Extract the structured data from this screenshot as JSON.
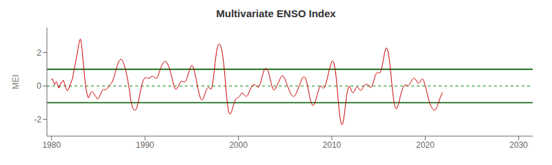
{
  "chart_data": {
    "type": "line",
    "title": "Multivariate ENSO Index",
    "ylabel": "MEI",
    "xlim": [
      1979.5,
      2031.5
    ],
    "xticks": [
      1980,
      1990,
      2000,
      2010,
      2020,
      2030
    ],
    "ylim": [
      -3.0,
      3.5
    ],
    "yticks": [
      -2,
      0,
      2
    ],
    "color": "#cc0000",
    "reference_lines": [
      {
        "value": 1.0,
        "color": "#1a6b1a",
        "line_style": "solid"
      },
      {
        "value": -1.0,
        "color": "#1a6b1a",
        "line_style": "solid"
      },
      {
        "value": 0,
        "color": "#008800",
        "line_style": "dashed"
      }
    ],
    "x": [
      1980,
      1980.0833,
      1980.1667,
      1980.25,
      1980.3333,
      1980.4167,
      1980.5,
      1980.5833,
      1980.6667,
      1980.75,
      1980.8333,
      1980.9167,
      1981,
      1981.0833,
      1981.1667,
      1981.25,
      1981.3333,
      1981.4167,
      1981.5,
      1981.5833,
      1981.6667,
      1981.75,
      1981.8333,
      1981.9167,
      1982,
      1982.0833,
      1982.1667,
      1982.25,
      1982.3333,
      1982.4167,
      1982.5,
      1982.5833,
      1982.6667,
      1982.75,
      1982.8333,
      1982.9167,
      1983,
      1983.0833,
      1983.1667,
      1983.25,
      1983.3333,
      1983.4167,
      1983.5,
      1983.5833,
      1983.6667,
      1983.75,
      1983.8333,
      1983.9167,
      1984,
      1984.0833,
      1984.1667,
      1984.25,
      1984.3333,
      1984.4167,
      1984.5,
      1984.5833,
      1984.6667,
      1984.75,
      1984.8333,
      1984.9167,
      1985,
      1985.0833,
      1985.1667,
      1985.25,
      1985.3333,
      1985.4167,
      1985.5,
      1985.5833,
      1985.6667,
      1985.75,
      1985.8333,
      1985.9167,
      1986,
      1986.0833,
      1986.1667,
      1986.25,
      1986.3333,
      1986.4167,
      1986.5,
      1986.5833,
      1986.6667,
      1986.75,
      1986.8333,
      1986.9167,
      1987,
      1987.0833,
      1987.1667,
      1987.25,
      1987.3333,
      1987.4167,
      1987.5,
      1987.5833,
      1987.6667,
      1987.75,
      1987.8333,
      1987.9167,
      1988,
      1988.0833,
      1988.1667,
      1988.25,
      1988.3333,
      1988.4167,
      1988.5,
      1988.5833,
      1988.6667,
      1988.75,
      1988.8333,
      1988.9167,
      1989,
      1989.0833,
      1989.1667,
      1989.25,
      1989.3333,
      1989.4167,
      1989.5,
      1989.5833,
      1989.6667,
      1989.75,
      1989.8333,
      1989.9167,
      1990,
      1990.0833,
      1990.1667,
      1990.25,
      1990.3333,
      1990.4167,
      1990.5,
      1990.5833,
      1990.6667,
      1990.75,
      1990.8333,
      1990.9167,
      1991,
      1991.0833,
      1991.1667,
      1991.25,
      1991.3333,
      1991.4167,
      1991.5,
      1991.5833,
      1991.6667,
      1991.75,
      1991.8333,
      1991.9167,
      1992,
      1992.0833,
      1992.1667,
      1992.25,
      1992.3333,
      1992.4167,
      1992.5,
      1992.5833,
      1992.6667,
      1992.75,
      1992.8333,
      1992.9167,
      1993,
      1993.0833,
      1993.1667,
      1993.25,
      1993.3333,
      1993.4167,
      1993.5,
      1993.5833,
      1993.6667,
      1993.75,
      1993.8333,
      1993.9167,
      1994,
      1994.0833,
      1994.1667,
      1994.25,
      1994.3333,
      1994.4167,
      1994.5,
      1994.5833,
      1994.6667,
      1994.75,
      1994.8333,
      1994.9167,
      1995,
      1995.0833,
      1995.1667,
      1995.25,
      1995.3333,
      1995.4167,
      1995.5,
      1995.5833,
      1995.6667,
      1995.75,
      1995.8333,
      1995.9167,
      1996,
      1996.0833,
      1996.1667,
      1996.25,
      1996.3333,
      1996.4167,
      1996.5,
      1996.5833,
      1996.6667,
      1996.75,
      1996.8333,
      1996.9167,
      1997,
      1997.0833,
      1997.1667,
      1997.25,
      1997.3333,
      1997.4167,
      1997.5,
      1997.5833,
      1997.6667,
      1997.75,
      1997.8333,
      1997.9167,
      1998,
      1998.0833,
      1998.1667,
      1998.25,
      1998.3333,
      1998.4167,
      1998.5,
      1998.5833,
      1998.6667,
      1998.75,
      1998.8333,
      1998.9167,
      1999,
      1999.0833,
      1999.1667,
      1999.25,
      1999.3333,
      1999.4167,
      1999.5,
      1999.5833,
      1999.6667,
      1999.75,
      1999.8333,
      1999.9167,
      2000,
      2000.0833,
      2000.1667,
      2000.25,
      2000.3333,
      2000.4167,
      2000.5,
      2000.5833,
      2000.6667,
      2000.75,
      2000.8333,
      2000.9167,
      2001,
      2001.0833,
      2001.1667,
      2001.25,
      2001.3333,
      2001.4167,
      2001.5,
      2001.5833,
      2001.6667,
      2001.75,
      2001.8333,
      2001.9167,
      2002,
      2002.0833,
      2002.1667,
      2002.25,
      2002.3333,
      2002.4167,
      2002.5,
      2002.5833,
      2002.6667,
      2002.75,
      2002.8333,
      2002.9167,
      2003,
      2003.0833,
      2003.1667,
      2003.25,
      2003.3333,
      2003.4167,
      2003.5,
      2003.5833,
      2003.6667,
      2003.75,
      2003.8333,
      2003.9167,
      2004,
      2004.0833,
      2004.1667,
      2004.25,
      2004.3333,
      2004.4167,
      2004.5,
      2004.5833,
      2004.6667,
      2004.75,
      2004.8333,
      2004.9167,
      2005,
      2005.0833,
      2005.1667,
      2005.25,
      2005.3333,
      2005.4167,
      2005.5,
      2005.5833,
      2005.6667,
      2005.75,
      2005.8333,
      2005.9167,
      2006,
      2006.0833,
      2006.1667,
      2006.25,
      2006.3333,
      2006.4167,
      2006.5,
      2006.5833,
      2006.6667,
      2006.75,
      2006.8333,
      2006.9167,
      2007,
      2007.0833,
      2007.1667,
      2007.25,
      2007.3333,
      2007.4167,
      2007.5,
      2007.5833,
      2007.6667,
      2007.75,
      2007.8333,
      2007.9167,
      2008,
      2008.0833,
      2008.1667,
      2008.25,
      2008.3333,
      2008.4167,
      2008.5,
      2008.5833,
      2008.6667,
      2008.75,
      2008.8333,
      2008.9167,
      2009,
      2009.0833,
      2009.1667,
      2009.25,
      2009.3333,
      2009.4167,
      2009.5,
      2009.5833,
      2009.6667,
      2009.75,
      2009.8333,
      2009.9167,
      2010,
      2010.0833,
      2010.1667,
      2010.25,
      2010.3333,
      2010.4167,
      2010.5,
      2010.5833,
      2010.6667,
      2010.75,
      2010.8333,
      2010.9167,
      2011,
      2011.0833,
      2011.1667,
      2011.25,
      2011.3333,
      2011.4167,
      2011.5,
      2011.5833,
      2011.6667,
      2011.75,
      2011.8333,
      2011.9167,
      2012,
      2012.0833,
      2012.1667,
      2012.25,
      2012.3333,
      2012.4167,
      2012.5,
      2012.5833,
      2012.6667,
      2012.75,
      2012.8333,
      2012.9167,
      2013,
      2013.0833,
      2013.1667,
      2013.25,
      2013.3333,
      2013.4167,
      2013.5,
      2013.5833,
      2013.6667,
      2013.75,
      2013.8333,
      2013.9167,
      2014,
      2014.0833,
      2014.1667,
      2014.25,
      2014.3333,
      2014.4167,
      2014.5,
      2014.5833,
      2014.6667,
      2014.75,
      2014.8333,
      2014.9167,
      2015,
      2015.0833,
      2015.1667,
      2015.25,
      2015.3333,
      2015.4167,
      2015.5,
      2015.5833,
      2015.6667,
      2015.75,
      2015.8333,
      2015.9167,
      2016,
      2016.0833,
      2016.1667,
      2016.25,
      2016.3333,
      2016.4167,
      2016.5,
      2016.5833,
      2016.6667,
      2016.75,
      2016.8333,
      2016.9167,
      2017,
      2017.0833,
      2017.1667,
      2017.25,
      2017.3333,
      2017.4167,
      2017.5,
      2017.5833,
      2017.6667,
      2017.75,
      2017.8333,
      2017.9167,
      2018,
      2018.0833,
      2018.1667,
      2018.25,
      2018.3333,
      2018.4167,
      2018.5,
      2018.5833,
      2018.6667,
      2018.75,
      2018.8333,
      2018.9167,
      2019,
      2019.0833,
      2019.1667,
      2019.25,
      2019.3333,
      2019.4167,
      2019.5,
      2019.5833,
      2019.6667,
      2019.75,
      2019.8333,
      2019.9167,
      2020,
      2020.0833,
      2020.1667,
      2020.25,
      2020.3333,
      2020.4167,
      2020.5,
      2020.5833,
      2020.6667,
      2020.75,
      2020.8333,
      2020.9167,
      2021,
      2021.0833,
      2021.1667,
      2021.25,
      2021.3333,
      2021.4167,
      2021.5,
      2021.5833,
      2021.6667,
      2021.75,
      2021.8333,
      2021.9167
    ],
    "values": [
      0.37,
      0.44,
      0.3,
      0.18,
      0.08,
      0.19,
      0.26,
      0.18,
      0.05,
      -0.12,
      -0.1,
      0.09,
      0.2,
      0.19,
      0.27,
      0.35,
      0.24,
      0.1,
      -0.09,
      -0.19,
      -0.28,
      -0.25,
      -0.17,
      -0.05,
      0.1,
      0.21,
      0.34,
      0.46,
      0.73,
      0.98,
      1.21,
      1.48,
      1.72,
      1.95,
      2.23,
      2.52,
      2.72,
      2.81,
      2.64,
      2.25,
      1.75,
      1.24,
      0.72,
      0.3,
      -0.08,
      -0.36,
      -0.56,
      -0.7,
      -0.68,
      -0.57,
      -0.44,
      -0.36,
      -0.33,
      -0.38,
      -0.42,
      -0.52,
      -0.58,
      -0.65,
      -0.72,
      -0.79,
      -0.76,
      -0.68,
      -0.59,
      -0.47,
      -0.38,
      -0.28,
      -0.22,
      -0.2,
      -0.22,
      -0.23,
      -0.22,
      -0.18,
      -0.12,
      -0.05,
      0.02,
      0.08,
      0.12,
      0.18,
      0.26,
      0.38,
      0.52,
      0.68,
      0.85,
      1.02,
      1.18,
      1.32,
      1.44,
      1.53,
      1.58,
      1.6,
      1.58,
      1.52,
      1.42,
      1.3,
      1.15,
      0.98,
      0.78,
      0.56,
      0.3,
      0.02,
      -0.28,
      -0.6,
      -0.92,
      -1.12,
      -1.28,
      -1.38,
      -1.44,
      -1.46,
      -1.43,
      -1.35,
      -1.22,
      -1.04,
      -0.82,
      -0.58,
      -0.34,
      -0.12,
      0.08,
      0.24,
      0.36,
      0.44,
      0.48,
      0.5,
      0.5,
      0.48,
      0.46,
      0.46,
      0.48,
      0.52,
      0.56,
      0.58,
      0.58,
      0.56,
      0.52,
      0.48,
      0.46,
      0.48,
      0.54,
      0.65,
      0.78,
      0.92,
      1.06,
      1.18,
      1.28,
      1.36,
      1.42,
      1.46,
      1.48,
      1.46,
      1.4,
      1.32,
      1.22,
      1.1,
      0.96,
      0.8,
      0.62,
      0.42,
      0.22,
      0.04,
      -0.1,
      -0.18,
      -0.2,
      -0.16,
      -0.08,
      0.02,
      0.12,
      0.2,
      0.25,
      0.28,
      0.28,
      0.26,
      0.24,
      0.24,
      0.28,
      0.36,
      0.48,
      0.62,
      0.78,
      0.94,
      1.08,
      1.18,
      1.22,
      1.2,
      1.12,
      0.98,
      0.8,
      0.58,
      0.34,
      0.1,
      -0.14,
      -0.36,
      -0.55,
      -0.7,
      -0.8,
      -0.84,
      -0.82,
      -0.74,
      -0.62,
      -0.48,
      -0.34,
      -0.22,
      -0.14,
      -0.1,
      -0.09,
      -0.12,
      -0.18,
      -0.18,
      -0.06,
      0.18,
      0.52,
      0.92,
      1.35,
      1.75,
      2.08,
      2.32,
      2.46,
      2.52,
      2.5,
      2.42,
      2.28,
      2.06,
      1.76,
      1.38,
      0.92,
      0.4,
      -0.16,
      -0.68,
      -1.12,
      -1.44,
      -1.62,
      -1.68,
      -1.66,
      -1.56,
      -1.42,
      -1.26,
      -1.1,
      -0.96,
      -0.84,
      -0.76,
      -0.72,
      -0.7,
      -0.68,
      -0.64,
      -0.58,
      -0.5,
      -0.44,
      -0.42,
      -0.44,
      -0.5,
      -0.56,
      -0.6,
      -0.62,
      -0.6,
      -0.55,
      -0.46,
      -0.34,
      -0.22,
      -0.12,
      -0.04,
      0.02,
      0.06,
      0.08,
      0.08,
      0.05,
      0.0,
      -0.05,
      -0.08,
      -0.06,
      0.02,
      0.14,
      0.3,
      0.48,
      0.66,
      0.82,
      0.94,
      1.02,
      1.06,
      1.05,
      1.0,
      0.9,
      0.76,
      0.58,
      0.38,
      0.18,
      0.0,
      -0.14,
      -0.22,
      -0.24,
      -0.2,
      -0.12,
      -0.02,
      0.08,
      0.18,
      0.28,
      0.38,
      0.48,
      0.56,
      0.6,
      0.6,
      0.56,
      0.48,
      0.38,
      0.26,
      0.14,
      0.02,
      -0.1,
      -0.22,
      -0.34,
      -0.44,
      -0.52,
      -0.58,
      -0.62,
      -0.62,
      -0.6,
      -0.54,
      -0.46,
      -0.36,
      -0.24,
      -0.12,
      0.0,
      0.12,
      0.24,
      0.36,
      0.46,
      0.52,
      0.55,
      0.54,
      0.48,
      0.36,
      0.18,
      -0.04,
      -0.28,
      -0.52,
      -0.74,
      -0.92,
      -1.06,
      -1.14,
      -1.16,
      -1.13,
      -1.04,
      -0.9,
      -0.74,
      -0.56,
      -0.38,
      -0.22,
      -0.1,
      -0.02,
      -0.0,
      -0.04,
      -0.1,
      -0.14,
      -0.12,
      -0.04,
      0.08,
      0.24,
      0.42,
      0.62,
      0.82,
      1.02,
      1.2,
      1.36,
      1.46,
      1.5,
      1.46,
      1.32,
      1.08,
      0.74,
      0.3,
      -0.22,
      -0.76,
      -1.26,
      -1.68,
      -2.02,
      -2.24,
      -2.32,
      -2.25,
      -2.04,
      -1.72,
      -1.35,
      -0.96,
      -0.6,
      -0.32,
      -0.12,
      -0.02,
      -0.04,
      -0.14,
      -0.26,
      -0.36,
      -0.4,
      -0.38,
      -0.3,
      -0.2,
      -0.12,
      -0.08,
      -0.08,
      -0.12,
      -0.18,
      -0.24,
      -0.26,
      -0.24,
      -0.18,
      -0.1,
      -0.02,
      0.04,
      0.08,
      0.1,
      0.1,
      0.08,
      0.04,
      -0.02,
      -0.08,
      -0.1,
      -0.06,
      0.04,
      0.18,
      0.34,
      0.5,
      0.64,
      0.74,
      0.8,
      0.82,
      0.8,
      0.78,
      0.8,
      0.9,
      1.06,
      1.28,
      1.54,
      1.8,
      2.04,
      2.2,
      2.28,
      2.24,
      2.1,
      1.85,
      1.52,
      1.12,
      0.66,
      0.18,
      -0.28,
      -0.68,
      -1.0,
      -1.22,
      -1.34,
      -1.36,
      -1.3,
      -1.18,
      -1.02,
      -0.82,
      -0.62,
      -0.44,
      -0.28,
      -0.14,
      -0.04,
      0.02,
      0.06,
      0.06,
      0.04,
      0.02,
      0.02,
      0.06,
      0.12,
      0.2,
      0.28,
      0.36,
      0.42,
      0.46,
      0.46,
      0.42,
      0.36,
      0.28,
      0.22,
      0.18,
      0.18,
      0.22,
      0.3,
      0.38,
      0.42,
      0.4,
      0.32,
      0.18,
      0.02,
      -0.16,
      -0.36,
      -0.56,
      -0.74,
      -0.9,
      -1.04,
      -1.16,
      -1.26,
      -1.34,
      -1.4,
      -1.44,
      -1.45,
      -1.42,
      -1.36,
      -1.26,
      -1.14,
      -1.0,
      -0.86,
      -0.72,
      -0.6,
      -0.5,
      -0.42,
      -0.38
    ]
  }
}
